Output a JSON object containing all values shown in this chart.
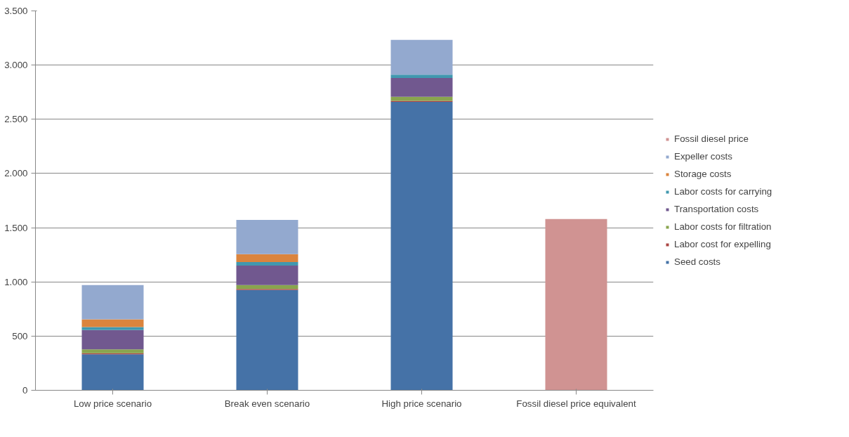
{
  "chart_data": {
    "type": "bar",
    "stacked": true,
    "categories": [
      "Low price scenario",
      "Break even scenario",
      "High price scenario",
      "Fossil diesel price equivalent"
    ],
    "series": [
      {
        "name": "Seed costs",
        "color": "#4572a7",
        "values": [
          332,
          925,
          2661,
          null
        ]
      },
      {
        "name": "Labor cost for expelling",
        "color": "#aa4643",
        "values": [
          10,
          10,
          10,
          null
        ]
      },
      {
        "name": "Labor costs for filtration",
        "color": "#89a54e",
        "values": [
          35,
          35,
          37,
          null
        ]
      },
      {
        "name": "Transportation costs",
        "color": "#71588f",
        "values": [
          179,
          181,
          173,
          null
        ]
      },
      {
        "name": "Labor costs for carrying",
        "color": "#4198af",
        "values": [
          28,
          32,
          30,
          null
        ]
      },
      {
        "name": "Storage costs",
        "color": "#db843d",
        "values": [
          71,
          73,
          null,
          null
        ]
      },
      {
        "name": "Expeller costs",
        "color": "#93a9cf",
        "values": [
          315,
          315,
          321,
          null
        ]
      },
      {
        "name": "Fossil diesel price",
        "color": "#d09392",
        "values": [
          null,
          null,
          null,
          1580
        ]
      }
    ],
    "ylim": [
      0,
      3500
    ],
    "yticks": [
      0,
      500,
      {
        "value": 1000,
        "label": "1.000"
      },
      {
        "value": 1500,
        "label": "1.500"
      },
      {
        "value": 2000,
        "label": "2.000"
      },
      {
        "value": 2500,
        "label": "2.500"
      },
      {
        "value": 3000,
        "label": "3.000"
      },
      {
        "value": 3500,
        "label": "3.500"
      }
    ],
    "grid": "y",
    "legend": "right"
  }
}
